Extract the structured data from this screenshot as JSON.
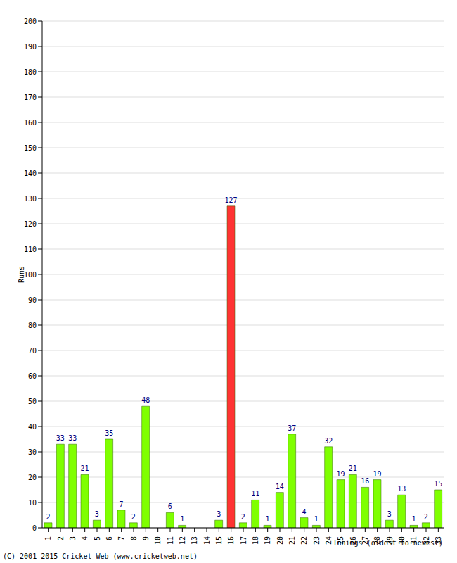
{
  "chart_data": {
    "type": "bar",
    "y_label": "Runs",
    "x_label": "Innings (oldest to newest)",
    "annotations": [
      "(C) 2001-2015 Cricket Web (www.cricketweb.net)"
    ],
    "categories": [
      "1",
      "2",
      "3",
      "4",
      "5",
      "6",
      "7",
      "8",
      "9",
      "10",
      "11",
      "12",
      "13",
      "14",
      "15",
      "16",
      "17",
      "18",
      "19",
      "20",
      "21",
      "22",
      "23",
      "24",
      "25",
      "26",
      "27",
      "28",
      "29",
      "30",
      "31",
      "32",
      "33"
    ],
    "values": [
      2,
      33,
      33,
      21,
      3,
      35,
      7,
      2,
      48,
      0,
      6,
      1,
      0,
      0,
      3,
      127,
      2,
      11,
      1,
      14,
      37,
      4,
      1,
      32,
      19,
      21,
      16,
      19,
      3,
      13,
      1,
      2,
      15
    ],
    "colors": [
      "#7fff00",
      "#7fff00",
      "#7fff00",
      "#7fff00",
      "#7fff00",
      "#7fff00",
      "#7fff00",
      "#7fff00",
      "#7fff00",
      "#7fff00",
      "#7fff00",
      "#7fff00",
      "#7fff00",
      "#7fff00",
      "#7fff00",
      "#ff3333",
      "#7fff00",
      "#7fff00",
      "#7fff00",
      "#7fff00",
      "#7fff00",
      "#7fff00",
      "#7fff00",
      "#7fff00",
      "#7fff00",
      "#7fff00",
      "#7fff00",
      "#7fff00",
      "#7fff00",
      "#7fff00",
      "#7fff00",
      "#7fff00",
      "#7fff00"
    ],
    "ylim": [
      0,
      200
    ],
    "yticks": [
      0,
      10,
      20,
      30,
      40,
      50,
      60,
      70,
      80,
      90,
      100,
      110,
      120,
      130,
      140,
      150,
      160,
      170,
      180,
      190,
      200
    ],
    "grid": true,
    "data_labels": true
  }
}
